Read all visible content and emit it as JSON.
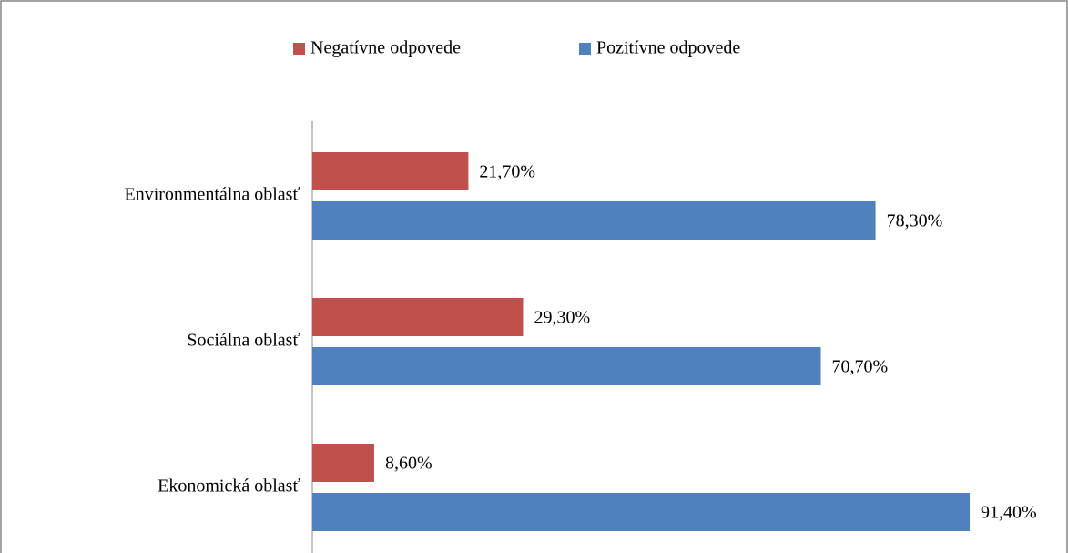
{
  "chart_data": {
    "type": "hbar",
    "categories": [
      "Environmentálna oblasť",
      "Sociálna oblasť",
      "Ekonomická oblasť"
    ],
    "series": [
      {
        "name": "Negatívne odpovede",
        "color": "#c0504d",
        "values": [
          21.7,
          29.3,
          8.6
        ],
        "value_labels": [
          "21,70%",
          "29,30%",
          "8,60%"
        ]
      },
      {
        "name": "Pozitívne odpovede",
        "color": "#4f81bd",
        "values": [
          78.3,
          70.7,
          91.4
        ],
        "value_labels": [
          "78,30%",
          "70,70%",
          "91,40%"
        ]
      }
    ],
    "xlim": [
      0,
      100
    ],
    "legend": "top"
  }
}
